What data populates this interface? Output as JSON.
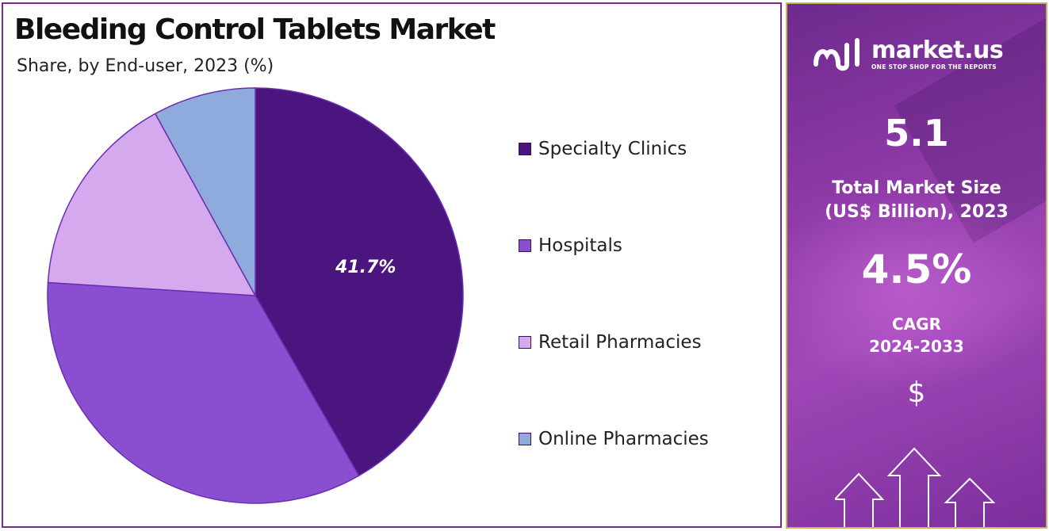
{
  "chart_data": {
    "type": "pie",
    "title": "Bleeding Control Tablets Market",
    "subtitle": "Share, by End-user, 2023 (%)",
    "categories": [
      "Specialty Clinics",
      "Hospitals",
      "Retail Pharmacies",
      "Online Pharmacies"
    ],
    "values": [
      41.7,
      34.3,
      16.0,
      8.0
    ],
    "data_labels": [
      "41.7%",
      "",
      "",
      ""
    ],
    "colors": [
      "#4b1580",
      "#8a4ed0",
      "#d4a9ee",
      "#8faadc"
    ],
    "legend_position": "right"
  },
  "panel": {
    "logo_name": "market.us",
    "logo_tagline": "ONE STOP SHOP FOR THE REPORTS",
    "market_size_value": "5.1",
    "market_size_label_line1": "Total Market Size",
    "market_size_label_line2": "(US$ Billion), 2023",
    "cagr_value": "4.5%",
    "cagr_label_line1": "CAGR",
    "cagr_label_line2": "2024-2033",
    "currency_symbol": "$",
    "logo_icon": "market-us-logo-icon",
    "decor_icon": "up-arrows-icon"
  }
}
